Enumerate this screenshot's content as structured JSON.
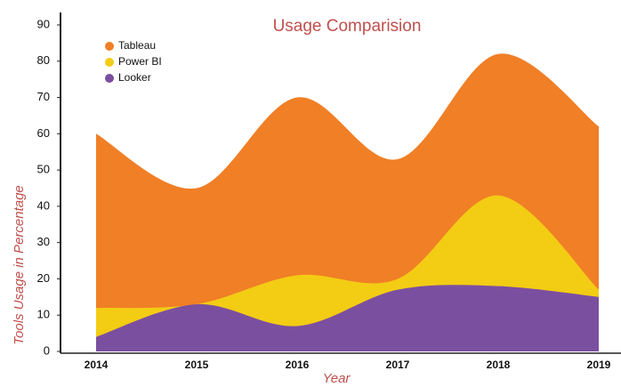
{
  "chart_data": {
    "type": "area",
    "title": "Usage  Comparision",
    "x_label": "Year",
    "y_label": "Tools Usage in Percentage",
    "categories": [
      "2014",
      "2015",
      "2016",
      "2017",
      "2018",
      "2019"
    ],
    "series": [
      {
        "name": "Tableau",
        "color": "#f07f26",
        "values": [
          60,
          45,
          70,
          53,
          82,
          62
        ]
      },
      {
        "name": "Power BI",
        "color": "#f3cc14",
        "values": [
          12,
          13,
          21,
          20,
          43,
          17
        ]
      },
      {
        "name": "Looker",
        "color": "#7b4fa0",
        "values": [
          4,
          13,
          7,
          17,
          18,
          15
        ]
      }
    ],
    "ylim": [
      0,
      90
    ],
    "yticks": [
      0,
      10,
      20,
      30,
      40,
      50,
      60,
      70,
      80,
      90
    ],
    "legend": "upper left"
  }
}
